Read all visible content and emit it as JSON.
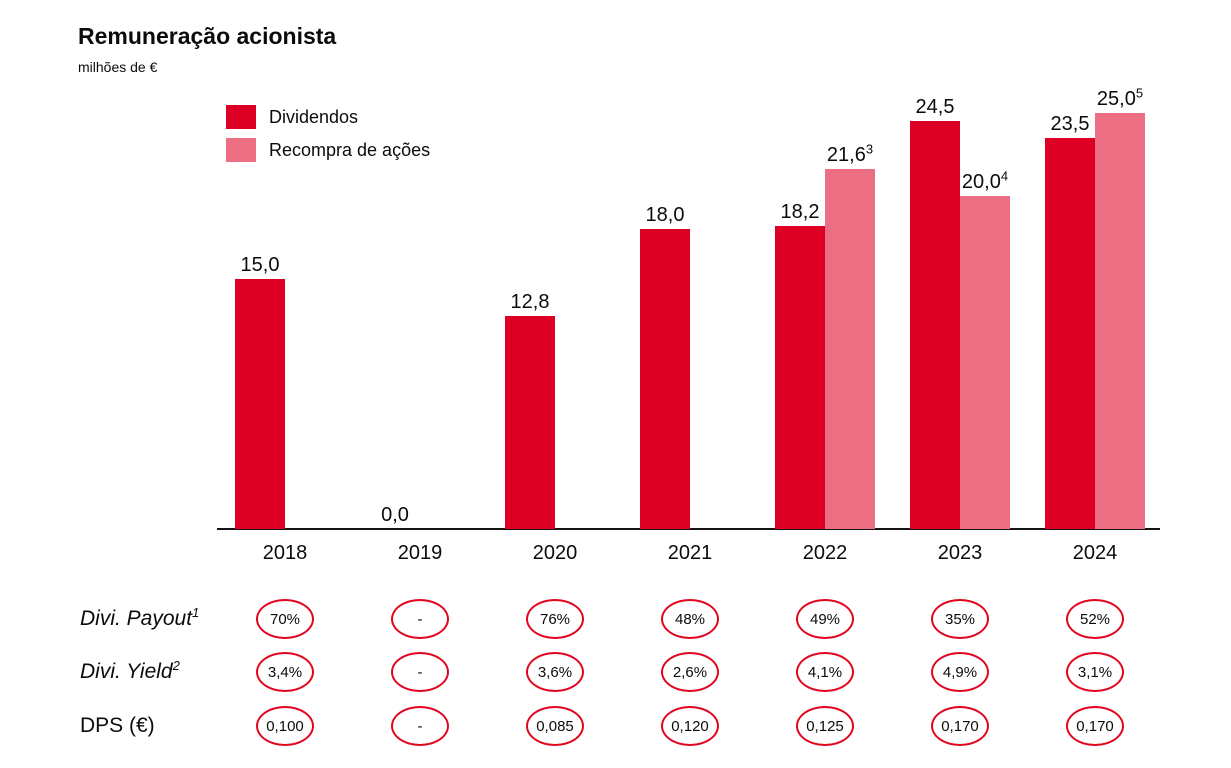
{
  "page": {
    "title": "Remuneração acionista",
    "unit": "milhões de €"
  },
  "legend": {
    "items": [
      {
        "label": "Dividendos",
        "color": "#DE0024"
      },
      {
        "label": "Recompra de ações",
        "color": "#EC6E82"
      }
    ]
  },
  "chart_data": {
    "type": "bar",
    "title": "Remuneração acionista",
    "subtitle": "milhões de €",
    "unit": "milhões de €",
    "categories": [
      "2018",
      "2019",
      "2020",
      "2021",
      "2022",
      "2023",
      "2024"
    ],
    "series": [
      {
        "name": "Dividendos",
        "color": "#DE0024",
        "values": [
          15.0,
          0.0,
          12.8,
          18.0,
          18.2,
          24.5,
          23.5
        ],
        "labels": [
          "15,0",
          "0,0",
          "12,8",
          "18,0",
          "18,2",
          "24,5",
          "23,5"
        ],
        "sups": [
          "",
          "",
          "",
          "",
          "",
          "",
          ""
        ]
      },
      {
        "name": "Recompra de ações",
        "color": "#EC6E82",
        "values": [
          null,
          null,
          null,
          null,
          21.6,
          20.0,
          25.0
        ],
        "labels": [
          "",
          "",
          "",
          "",
          "21,6",
          "20,0",
          "25,0"
        ],
        "sups": [
          "",
          "",
          "",
          "",
          "3",
          "4",
          "5"
        ]
      }
    ],
    "ylim": [
      0,
      26
    ],
    "grid": false,
    "legend_position": "top-left",
    "value_labels": true
  },
  "table": {
    "cell_border_color": "#E2051E",
    "rows": [
      {
        "label": "Divi. Payout",
        "sup": "1",
        "italic": true,
        "values": [
          "70%",
          "-",
          "76%",
          "48%",
          "49%",
          "35%",
          "52%"
        ]
      },
      {
        "label": "Divi. Yield",
        "sup": "2",
        "italic": true,
        "values": [
          "3,4%",
          "-",
          "3,6%",
          "2,6%",
          "4,1%",
          "4,9%",
          "3,1%"
        ]
      },
      {
        "label": "DPS (€)",
        "sup": "",
        "italic": false,
        "values": [
          "0,100",
          "-",
          "0,085",
          "0,120",
          "0,125",
          "0,170",
          "0,170"
        ]
      }
    ]
  }
}
